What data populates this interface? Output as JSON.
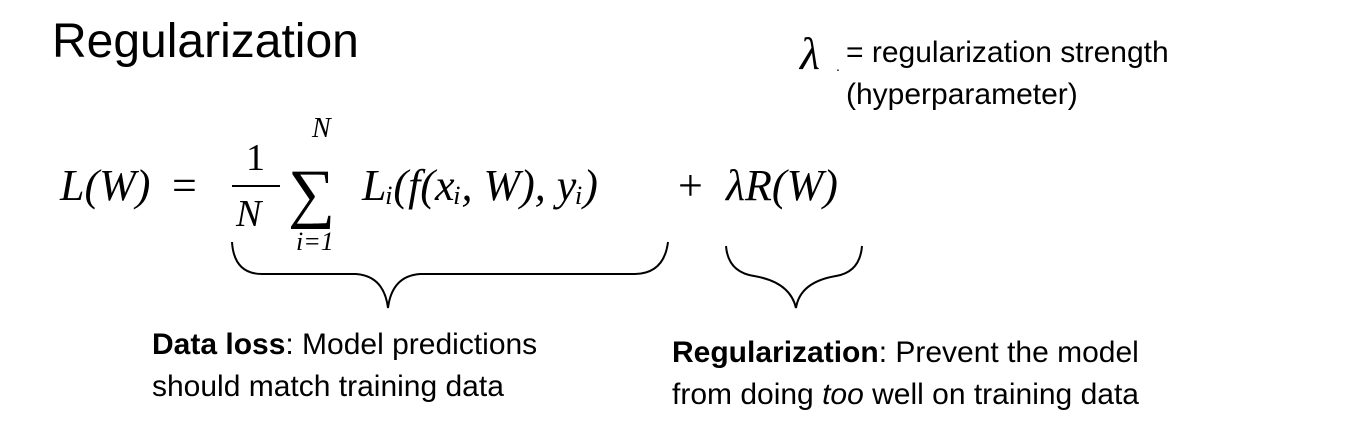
{
  "title": "Regularization",
  "lambda_note": {
    "symbol": "λ",
    "line1": "= regularization strength",
    "line2": "(hyperparameter)"
  },
  "formula": {
    "lhs": "L(W)",
    "equals": "=",
    "fraction_num": "1",
    "fraction_den": "N",
    "sum_symbol": "∑",
    "sum_upper": "N",
    "sum_lower": "i=1",
    "loss_term": "Lᵢ(f(xᵢ, W), yᵢ)",
    "plus": "+",
    "reg_term": "λR(W)"
  },
  "data_loss": {
    "bold": "Data loss",
    "rest_line1": ": Model predictions",
    "line2": "should match training data"
  },
  "regularization_desc": {
    "bold": "Regularization",
    "rest_line1": ": Prevent the model",
    "line2_pre": "from doing ",
    "line2_italic": "too",
    "line2_post": " well on training data"
  }
}
